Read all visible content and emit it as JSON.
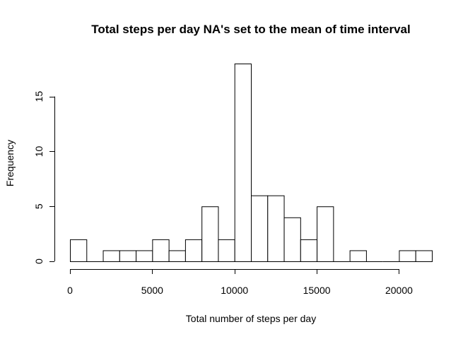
{
  "chart_data": {
    "type": "bar",
    "subtype": "histogram",
    "title": "Total steps per day NA's set to the mean of time interval",
    "xlabel": "Total number of steps per day",
    "ylabel": "Frequency",
    "xlim": [
      0,
      22000
    ],
    "ylim": [
      0,
      18
    ],
    "x_ticks": [
      0,
      5000,
      10000,
      15000,
      20000
    ],
    "y_ticks": [
      0,
      5,
      10,
      15
    ],
    "bin_width": 1000,
    "bin_starts": [
      0,
      1000,
      2000,
      3000,
      4000,
      5000,
      6000,
      7000,
      8000,
      9000,
      10000,
      11000,
      12000,
      13000,
      14000,
      15000,
      16000,
      17000,
      18000,
      19000,
      20000,
      21000
    ],
    "values": [
      2,
      0,
      1,
      1,
      1,
      2,
      1,
      2,
      5,
      2,
      18,
      6,
      6,
      4,
      2,
      5,
      0,
      1,
      0,
      0,
      1,
      1
    ],
    "bar_fill": "#ffffff",
    "bar_stroke": "#000000",
    "grid": false
  }
}
